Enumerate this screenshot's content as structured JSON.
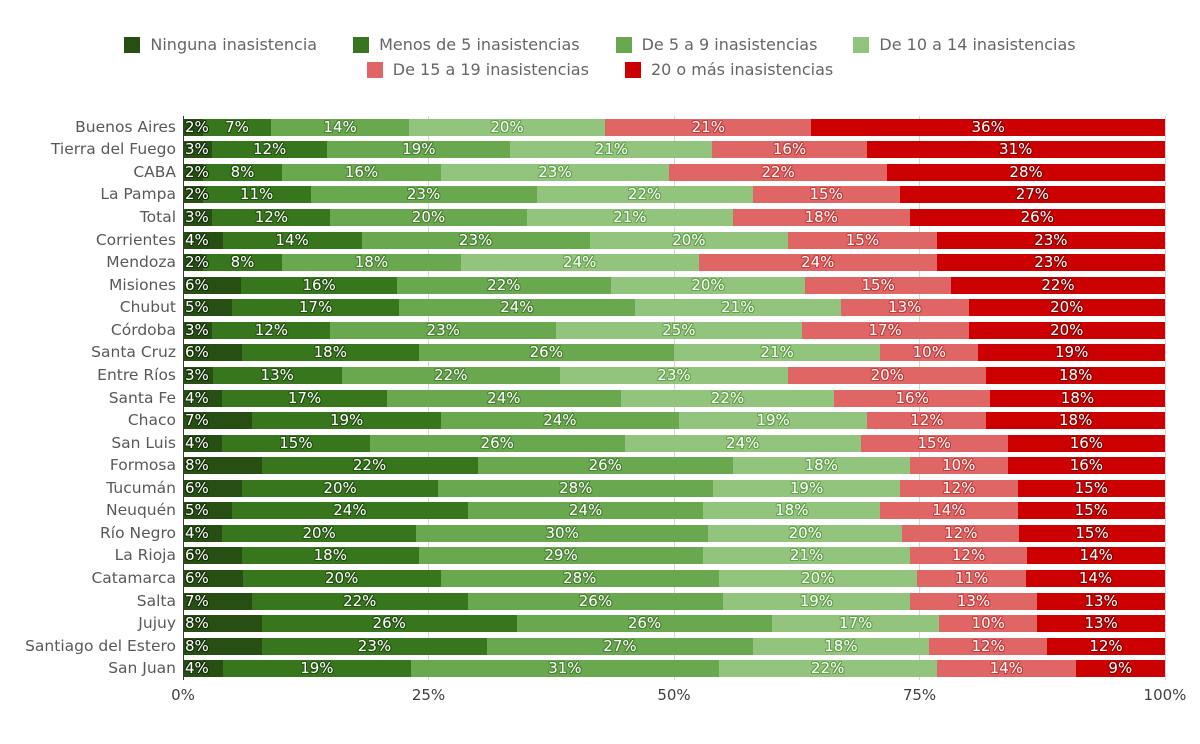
{
  "chart_data": {
    "type": "bar",
    "stacked": true,
    "orientation": "horizontal",
    "title": "",
    "xlabel": "",
    "ylabel": "",
    "value_suffix": "%",
    "xlim": [
      0,
      100
    ],
    "grid": true,
    "legend_position": "top",
    "legend_rows": [
      [
        0,
        1,
        2,
        3
      ],
      [
        4,
        5
      ]
    ],
    "x_ticks": [
      {
        "value": 0,
        "label": "0%"
      },
      {
        "value": 25,
        "label": "25%"
      },
      {
        "value": 50,
        "label": "50%"
      },
      {
        "value": 75,
        "label": "75%"
      },
      {
        "value": 100,
        "label": "100%"
      }
    ],
    "categories": [
      "Buenos Aires",
      "Tierra del Fuego",
      "CABA",
      "La Pampa",
      "Total",
      "Corrientes",
      "Mendoza",
      "Misiones",
      "Chubut",
      "Córdoba",
      "Santa Cruz",
      "Entre Ríos",
      "Santa Fe",
      "Chaco",
      "San Luis",
      "Formosa",
      "Tucumán",
      "Neuquén",
      "Río Negro",
      "La Rioja",
      "Catamarca",
      "Salta",
      "Jujuy",
      "Santiago del Estero",
      "San Juan"
    ],
    "series": [
      {
        "name": "Ninguna inasistencia",
        "color": "#274e13",
        "label_outline": "#17300a",
        "values": [
          2,
          3,
          2,
          2,
          3,
          4,
          2,
          6,
          5,
          3,
          6,
          3,
          4,
          7,
          4,
          8,
          6,
          5,
          4,
          6,
          6,
          7,
          8,
          8,
          4
        ]
      },
      {
        "name": "Menos de 5 inasistencias",
        "color": "#38761d",
        "label_outline": "#245012",
        "values": [
          7,
          12,
          8,
          11,
          12,
          14,
          8,
          16,
          17,
          12,
          18,
          13,
          17,
          19,
          15,
          22,
          20,
          24,
          20,
          18,
          20,
          22,
          26,
          23,
          19
        ]
      },
      {
        "name": "De 5 a 9 inasistencias",
        "color": "#6aa84f",
        "label_outline": "#4a8033",
        "values": [
          14,
          19,
          16,
          23,
          20,
          23,
          18,
          22,
          24,
          23,
          26,
          22,
          24,
          24,
          26,
          26,
          28,
          24,
          30,
          29,
          28,
          26,
          26,
          27,
          31
        ]
      },
      {
        "name": "De 10 a 14 inasistencias",
        "color": "#93c47d",
        "label_outline": "#66a14e",
        "values": [
          20,
          21,
          23,
          22,
          21,
          20,
          24,
          20,
          21,
          25,
          21,
          23,
          22,
          19,
          24,
          18,
          19,
          18,
          20,
          21,
          20,
          19,
          17,
          18,
          22
        ]
      },
      {
        "name": "De 15 a 19 inasistencias",
        "color": "#e06666",
        "label_outline": "#c43e3e",
        "values": [
          21,
          16,
          22,
          15,
          18,
          15,
          24,
          15,
          13,
          17,
          10,
          20,
          16,
          12,
          15,
          10,
          12,
          14,
          12,
          12,
          11,
          13,
          10,
          12,
          14
        ]
      },
      {
        "name": "20 o más inasistencias",
        "color": "#cc0000",
        "label_outline": "#8f0000",
        "values": [
          36,
          31,
          28,
          27,
          26,
          23,
          23,
          22,
          20,
          20,
          19,
          18,
          18,
          18,
          16,
          16,
          15,
          15,
          15,
          14,
          14,
          13,
          13,
          12,
          9
        ]
      }
    ],
    "colors": {
      "background": "#ffffff",
      "axis_line": "#3b3b3b",
      "gridline": "#d6d6d6",
      "row_label": "#595959",
      "tick_label": "#3f3f3f",
      "legend_label": "#666666"
    }
  }
}
